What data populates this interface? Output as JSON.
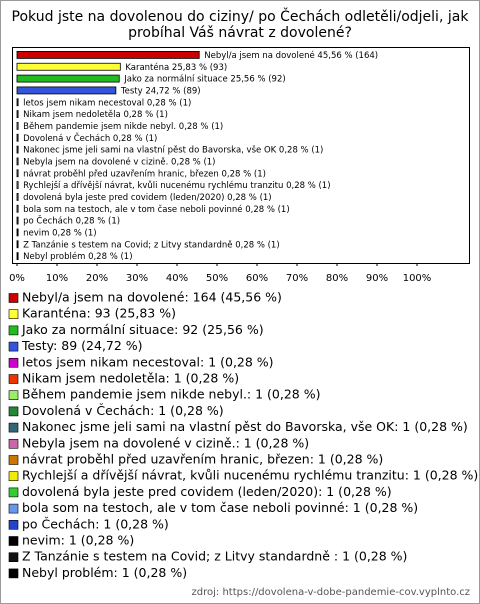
{
  "chart_data": {
    "type": "bar",
    "orientation": "horizontal",
    "title": [
      "Pokud jste na dovolenou do ciziny/ po Čechách odletěli/odjeli, jak",
      "probíhal Váš návrat z dovolené?"
    ],
    "categories": [
      "Nebyl/a jsem na dovolené",
      "Karanténa",
      "Jako za normální situace",
      "Testy",
      "letos jsem nikam necestoval",
      "Nikam jsem nedoletěla",
      "Během pandemie jsem nikde nebyl.",
      "Dovolená v Čechách",
      "Nakonec jsme jeli sami na vlastní pěst do Bavorska, vše OK",
      "Nebyla jsem na dovolené v cizině.",
      "návrat proběhl před uzavřením hranic, březen",
      "Rychlejší a dřívější návrat, kvůli nucenému rychlému tranzitu",
      "dovolená byla jeste pred covidem (leden/2020)",
      "bola som na testoch, ale v tom čase neboli povinné",
      "po Čechách",
      "nevim",
      "Z Tanzánie s testem na Covid; z Litvy standardně",
      "Nebyl problém"
    ],
    "values": [
      45.56,
      25.83,
      25.56,
      24.72,
      0.28,
      0.28,
      0.28,
      0.28,
      0.28,
      0.28,
      0.28,
      0.28,
      0.28,
      0.28,
      0.28,
      0.28,
      0.28,
      0.28
    ],
    "value_labels": [
      "45,56 % (164)",
      "25,83 % (93)",
      "25,56 % (92)",
      "24,72 % (89)",
      "0,28 % (1)",
      "0,28 % (1)",
      "0,28 % (1)",
      "0,28 % (1)",
      "0,28 % (1)",
      "0,28 % (1)",
      "0,28 % (1)",
      "0,28 % (1)",
      "0,28 % (1)",
      "0,28 % (1)",
      "0,28 % (1)",
      "0,28 % (1)",
      "0,28 % (1)",
      "0,28 % (1)"
    ],
    "colors": [
      "#cc0000",
      "#ffff33",
      "#22bb22",
      "#3355dd",
      "#cc00cc",
      "#ee3300",
      "#99ee66",
      "#228833",
      "#336677",
      "#cc66aa",
      "#cc7700",
      "#eeee00",
      "#33cc33",
      "#6699ee",
      "#2244cc",
      "#000000",
      "#111111",
      "#000000"
    ],
    "legend_labels": [
      "Nebyl/a jsem na dovolené: 164 (45,56 %)",
      "Karanténa: 93 (25,83 %)",
      "Jako za normální situace: 92 (25,56 %)",
      "Testy: 89 (24,72 %)",
      "letos jsem nikam necestoval: 1 (0,28 %)",
      "Nikam jsem nedoletěla: 1 (0,28 %)",
      "Během pandemie jsem nikde nebyl.: 1 (0,28 %)",
      "Dovolená v Čechách: 1 (0,28 %)",
      "Nakonec jsme jeli sami na vlastní pěst do Bavorska, vše OK: 1 (0,28 %)",
      "Nebyla jsem na dovolené v cizině.: 1 (0,28 %)",
      "návrat proběhl před uzavřením hranic, březen: 1 (0,28 %)",
      "Rychlejší a dřívější návrat, kvůli nucenému rychlému tranzitu: 1 (0,28 %)",
      "dovolená byla jeste pred covidem (leden/2020): 1 (0,28 %)",
      "bola som na testoch, ale v tom čase neboli povinné: 1 (0,28 %)",
      "po Čechách: 1 (0,28 %)",
      "nevim: 1 (0,28 %)",
      "Z Tanzánie s testem na Covid; z Litvy standardně : 1 (0,28 %)",
      "Nebyl problém: 1 (0,28 %)"
    ],
    "xlim": [
      0,
      100
    ],
    "xticks": [
      {
        "value": 0,
        "label": "0%"
      },
      {
        "value": 10,
        "label": "10%"
      },
      {
        "value": 20,
        "label": "20%"
      },
      {
        "value": 30,
        "label": "30%"
      },
      {
        "value": 40,
        "label": "40%"
      },
      {
        "value": 50,
        "label": "50%"
      },
      {
        "value": 60,
        "label": "60%"
      },
      {
        "value": 70,
        "label": "70%"
      },
      {
        "value": 80,
        "label": "80%"
      },
      {
        "value": 90,
        "label": "90%"
      },
      {
        "value": 100,
        "label": "100%"
      }
    ],
    "source": "zdroj: https://dovolena-v-dobe-pandemie-cov.vyplnto.cz"
  }
}
